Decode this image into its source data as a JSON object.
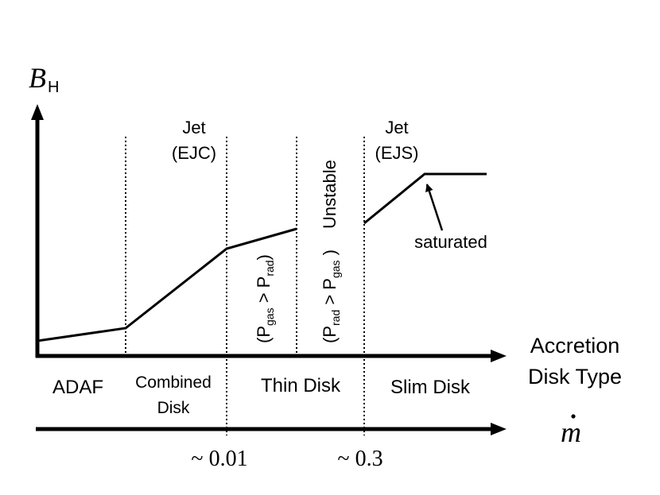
{
  "y_axis": {
    "symbol": "B",
    "subscript": "H"
  },
  "x_axis": {
    "label_line1": "Accretion",
    "label_line2": "Disk Type",
    "mdot_symbol": "m",
    "ticks": [
      "~ 0.01",
      "~ 0.3"
    ]
  },
  "regions": {
    "adaf": "ADAF",
    "combined_line1": "Combined",
    "combined_line2": "Disk",
    "thin": "Thin Disk",
    "slim": "Slim Disk"
  },
  "annotations": {
    "jet_ejc_line1": "Jet",
    "jet_ejc_line2": "(EJC)",
    "jet_ejs_line1": "Jet",
    "jet_ejs_line2": "(EJS)",
    "pgas_pressure": {
      "open": "(P",
      "sub1": "gas",
      "mid": " > P",
      "sub2": "rad",
      "close": ")"
    },
    "prad_pressure": {
      "open": "(P",
      "sub1": "rad",
      "mid": " > P",
      "sub2": "gas",
      "close": " )"
    },
    "unstable": "Unstable",
    "saturated": "saturated"
  },
  "colors": {
    "ink": "#000000",
    "background": "#ffffff"
  }
}
